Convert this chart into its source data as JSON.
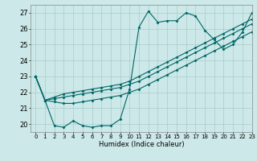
{
  "xlabel": "Humidex (Indice chaleur)",
  "ylabel": "",
  "xlim": [
    -0.5,
    23
  ],
  "ylim": [
    19.5,
    27.5
  ],
  "yticks": [
    20,
    21,
    22,
    23,
    24,
    25,
    26,
    27
  ],
  "xticks": [
    0,
    1,
    2,
    3,
    4,
    5,
    6,
    7,
    8,
    9,
    10,
    11,
    12,
    13,
    14,
    15,
    16,
    17,
    18,
    19,
    20,
    21,
    22,
    23
  ],
  "bg_color": "#cce8e8",
  "grid_color": "#aacccc",
  "line_color": "#006666",
  "series": [
    [
      23.0,
      21.5,
      19.9,
      19.8,
      20.2,
      19.9,
      19.8,
      19.9,
      19.9,
      20.3,
      22.2,
      26.1,
      27.1,
      26.4,
      26.5,
      26.5,
      27.0,
      26.8,
      25.9,
      25.3,
      24.7,
      25.0,
      25.8,
      27.0
    ],
    [
      23.0,
      21.5,
      21.7,
      21.9,
      22.0,
      22.1,
      22.2,
      22.3,
      22.4,
      22.5,
      22.7,
      23.0,
      23.3,
      23.6,
      23.9,
      24.2,
      24.5,
      24.8,
      25.1,
      25.4,
      25.7,
      26.0,
      26.3,
      26.6
    ],
    [
      23.0,
      21.5,
      21.6,
      21.7,
      21.8,
      21.9,
      22.0,
      22.1,
      22.2,
      22.3,
      22.5,
      22.7,
      23.0,
      23.3,
      23.6,
      23.9,
      24.2,
      24.5,
      24.8,
      25.1,
      25.4,
      25.7,
      26.0,
      26.3
    ],
    [
      23.0,
      21.5,
      21.4,
      21.3,
      21.3,
      21.4,
      21.5,
      21.6,
      21.7,
      21.8,
      22.0,
      22.2,
      22.5,
      22.8,
      23.1,
      23.4,
      23.7,
      24.0,
      24.3,
      24.6,
      24.9,
      25.2,
      25.5,
      25.8
    ]
  ]
}
